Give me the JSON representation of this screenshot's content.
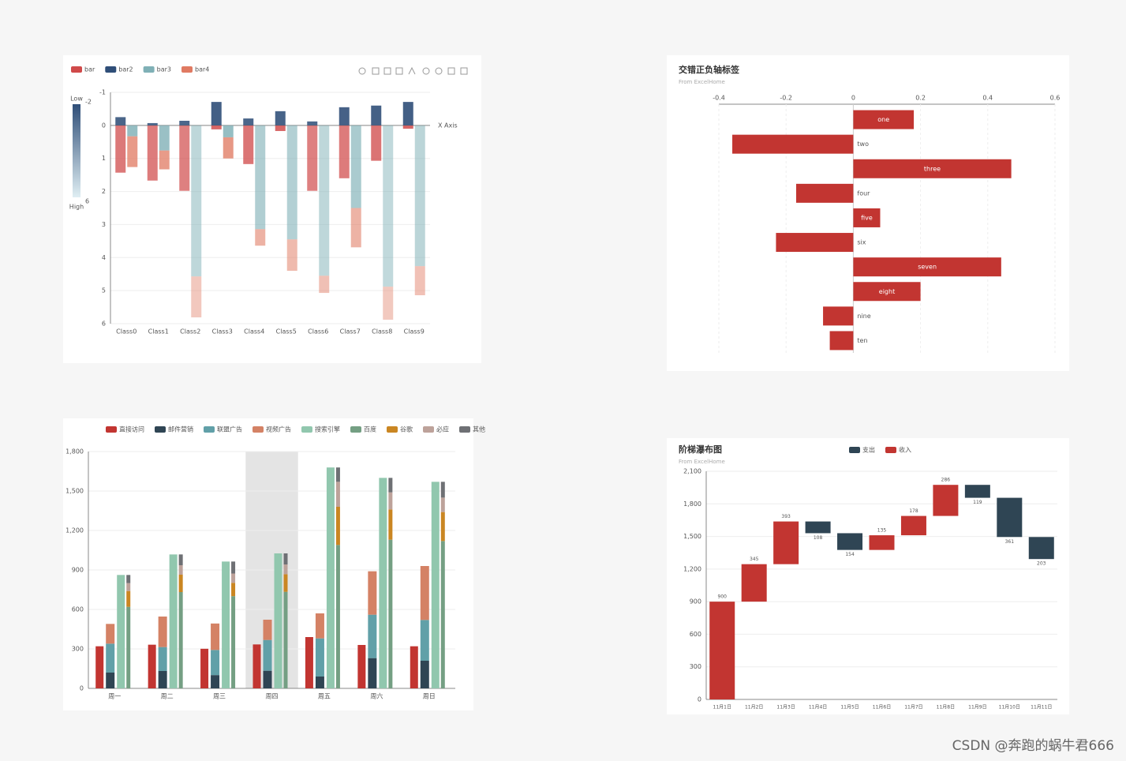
{
  "chart_data": [
    {
      "type": "bar",
      "inverse": true,
      "x_label": "X Axis",
      "categories": [
        "Class0",
        "Class1",
        "Class2",
        "Class3",
        "Class4",
        "Class5",
        "Class6",
        "Class7",
        "Class8",
        "Class9"
      ],
      "series": [
        {
          "name": "bar",
          "color": "#d04a4a",
          "values": [
            1.43,
            1.67,
            1.98,
            0.12,
            1.17,
            0.17,
            1.98,
            1.6,
            1.07,
            0.1
          ]
        },
        {
          "name": "bar2",
          "color": "#2f4e78",
          "values": [
            -0.25,
            -0.07,
            -0.14,
            -0.71,
            -0.21,
            -0.43,
            -0.12,
            -0.55,
            -0.6,
            -0.71
          ]
        },
        {
          "name": "bar3",
          "color": "#7fb0b6",
          "values": [
            0.33,
            0.76,
            4.57,
            0.36,
            3.14,
            3.45,
            4.55,
            2.5,
            4.88,
            4.26
          ]
        },
        {
          "name": "bar4",
          "color": "#e07a62",
          "values": [
            0.93,
            0.57,
            1.24,
            0.64,
            0.5,
            0.95,
            0.52,
            1.19,
            1.0,
            0.88
          ]
        }
      ],
      "ylim": [
        -1,
        6
      ],
      "yticks": [
        -1,
        0,
        1,
        2,
        3,
        4,
        5,
        6
      ],
      "grid": true,
      "visual_map": {
        "text": [
          "Low",
          "High"
        ],
        "range": [
          -2,
          6
        ]
      }
    },
    {
      "type": "hbar",
      "title": "交错正负轴标签",
      "subtitle": "From ExcelHome",
      "categories": [
        "ten",
        "nine",
        "eight",
        "seven",
        "six",
        "five",
        "four",
        "three",
        "two",
        "one"
      ],
      "values": [
        -0.07,
        -0.09,
        0.2,
        0.44,
        -0.23,
        0.08,
        -0.17,
        0.47,
        -0.36,
        0.18
      ],
      "color": "#c23531",
      "xlim": [
        -0.4,
        0.6
      ],
      "xticks": [
        -0.4,
        -0.2,
        0,
        0.2,
        0.4,
        0.6
      ],
      "grid": true
    },
    {
      "type": "bar",
      "highlight": 3,
      "categories": [
        "周一",
        "周二",
        "周三",
        "周四",
        "周五",
        "周六",
        "周日"
      ],
      "series": [
        {
          "name": "直接访问",
          "color": "#c23531",
          "values": [
            320,
            332,
            301,
            334,
            390,
            330,
            320
          ]
        },
        {
          "name": "邮件营销",
          "color": "#2f4554",
          "values": [
            120,
            132,
            101,
            134,
            90,
            230,
            210
          ]
        },
        {
          "name": "联盟广告",
          "color": "#61a0a8",
          "values": [
            220,
            182,
            191,
            234,
            290,
            330,
            310
          ]
        },
        {
          "name": "视频广告",
          "color": "#d48265",
          "values": [
            150,
            232,
            201,
            154,
            190,
            330,
            410
          ]
        },
        {
          "name": "搜索引擎",
          "color": "#91c7ae",
          "values": [
            862,
            1018,
            964,
            1026,
            1679,
            1600,
            1570
          ]
        },
        {
          "name": "百度",
          "color": "#749f83",
          "values": [
            620,
            732,
            701,
            734,
            1090,
            1130,
            1120
          ]
        },
        {
          "name": "谷歌",
          "color": "#ca8622",
          "values": [
            120,
            132,
            101,
            134,
            290,
            230,
            220
          ]
        },
        {
          "name": "必应",
          "color": "#bda29a",
          "values": [
            60,
            72,
            71,
            74,
            190,
            130,
            110
          ]
        },
        {
          "name": "其他",
          "color": "#6e7074",
          "values": [
            62,
            82,
            91,
            84,
            109,
            110,
            120
          ]
        }
      ],
      "ylim": [
        0,
        1800
      ],
      "yticks": [
        0,
        {
          "value": 300,
          "label": "300"
        },
        {
          "value": 600,
          "label": "600"
        },
        {
          "value": 900,
          "label": "900"
        },
        {
          "value": 1200,
          "label": "1,200"
        },
        {
          "value": 1500,
          "label": "1,500"
        },
        {
          "value": 1800,
          "label": "1,800"
        }
      ],
      "grid": true
    },
    {
      "type": "waterfall",
      "title": "阶梯瀑布图",
      "subtitle": "From ExcelHome",
      "categories": [
        "11月1日",
        "11月2日",
        "11月3日",
        "11月4日",
        "11月5日",
        "11月6日",
        "11月7日",
        "11月8日",
        "11月9日",
        "11月10日",
        "11月11日"
      ],
      "series": [
        {
          "name": "支出",
          "color": "#2f4554",
          "values": [
            null,
            null,
            null,
            108,
            154,
            null,
            null,
            null,
            119,
            361,
            203
          ]
        },
        {
          "name": "收入",
          "color": "#c23531",
          "values": [
            900,
            345,
            393,
            null,
            null,
            135,
            178,
            286,
            null,
            null,
            null
          ]
        }
      ],
      "ylim": [
        0,
        2100
      ],
      "yticks": [
        0,
        300,
        600,
        900,
        {
          "value": 1200,
          "label": "1,200"
        },
        {
          "value": 1500,
          "label": "1,500"
        },
        {
          "value": 1800,
          "label": "1,800"
        },
        {
          "value": 2100,
          "label": "2,100"
        }
      ],
      "grid": true
    }
  ],
  "watermark": "CSDN @奔跑的蜗牛君666"
}
